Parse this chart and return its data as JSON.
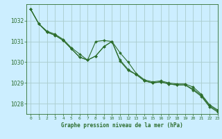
{
  "title": "Graphe pression niveau de la mer (hPa)",
  "bg_color": "#cceeff",
  "grid_color": "#aacccc",
  "line_color": "#2d6e2d",
  "marker_color": "#2d6e2d",
  "xlim": [
    -0.5,
    23
  ],
  "ylim": [
    1027.5,
    1032.8
  ],
  "yticks": [
    1028,
    1029,
    1030,
    1031,
    1032
  ],
  "xticks": [
    0,
    1,
    2,
    3,
    4,
    5,
    6,
    7,
    8,
    9,
    10,
    11,
    12,
    13,
    14,
    15,
    16,
    17,
    18,
    19,
    20,
    21,
    22,
    23
  ],
  "line1_x": [
    0,
    1,
    2,
    3,
    4,
    5,
    6,
    7,
    8,
    9,
    10,
    11,
    12,
    13,
    14,
    15,
    16,
    17,
    18,
    19,
    20,
    21,
    22,
    23
  ],
  "line1_y": [
    1032.55,
    1031.85,
    1031.45,
    1031.3,
    1031.05,
    1030.65,
    1030.25,
    1030.1,
    1030.3,
    1030.75,
    1031.0,
    1030.45,
    1030.0,
    1029.45,
    1029.15,
    1029.05,
    1029.1,
    1029.0,
    1028.95,
    1028.95,
    1028.8,
    1028.45,
    1027.95,
    1027.7
  ],
  "line2_x": [
    0,
    1,
    2,
    3,
    4,
    5,
    6,
    7,
    8,
    9,
    10,
    11,
    12,
    13,
    14,
    15,
    16,
    17,
    18,
    19,
    20,
    21,
    22,
    23
  ],
  "line2_y": [
    1032.55,
    1031.85,
    1031.45,
    1031.3,
    1031.05,
    1030.65,
    1030.25,
    1030.1,
    1030.3,
    1030.75,
    1031.0,
    1030.1,
    1029.65,
    1029.4,
    1029.1,
    1029.0,
    1029.05,
    1028.95,
    1028.9,
    1028.9,
    1028.7,
    1028.4,
    1027.9,
    1027.65
  ],
  "line3_x": [
    0,
    1,
    2,
    3,
    4,
    5,
    6,
    7,
    8,
    9,
    10,
    11,
    12,
    13,
    14,
    15,
    16,
    17,
    18,
    19,
    20,
    21,
    22,
    23
  ],
  "line3_y": [
    1032.55,
    1031.85,
    1031.5,
    1031.35,
    1031.1,
    1030.7,
    1030.4,
    1030.1,
    1031.0,
    1031.05,
    1031.0,
    1030.05,
    1029.6,
    1029.4,
    1029.1,
    1029.0,
    1029.05,
    1028.95,
    1028.9,
    1028.9,
    1028.65,
    1028.35,
    1027.85,
    1027.6
  ]
}
